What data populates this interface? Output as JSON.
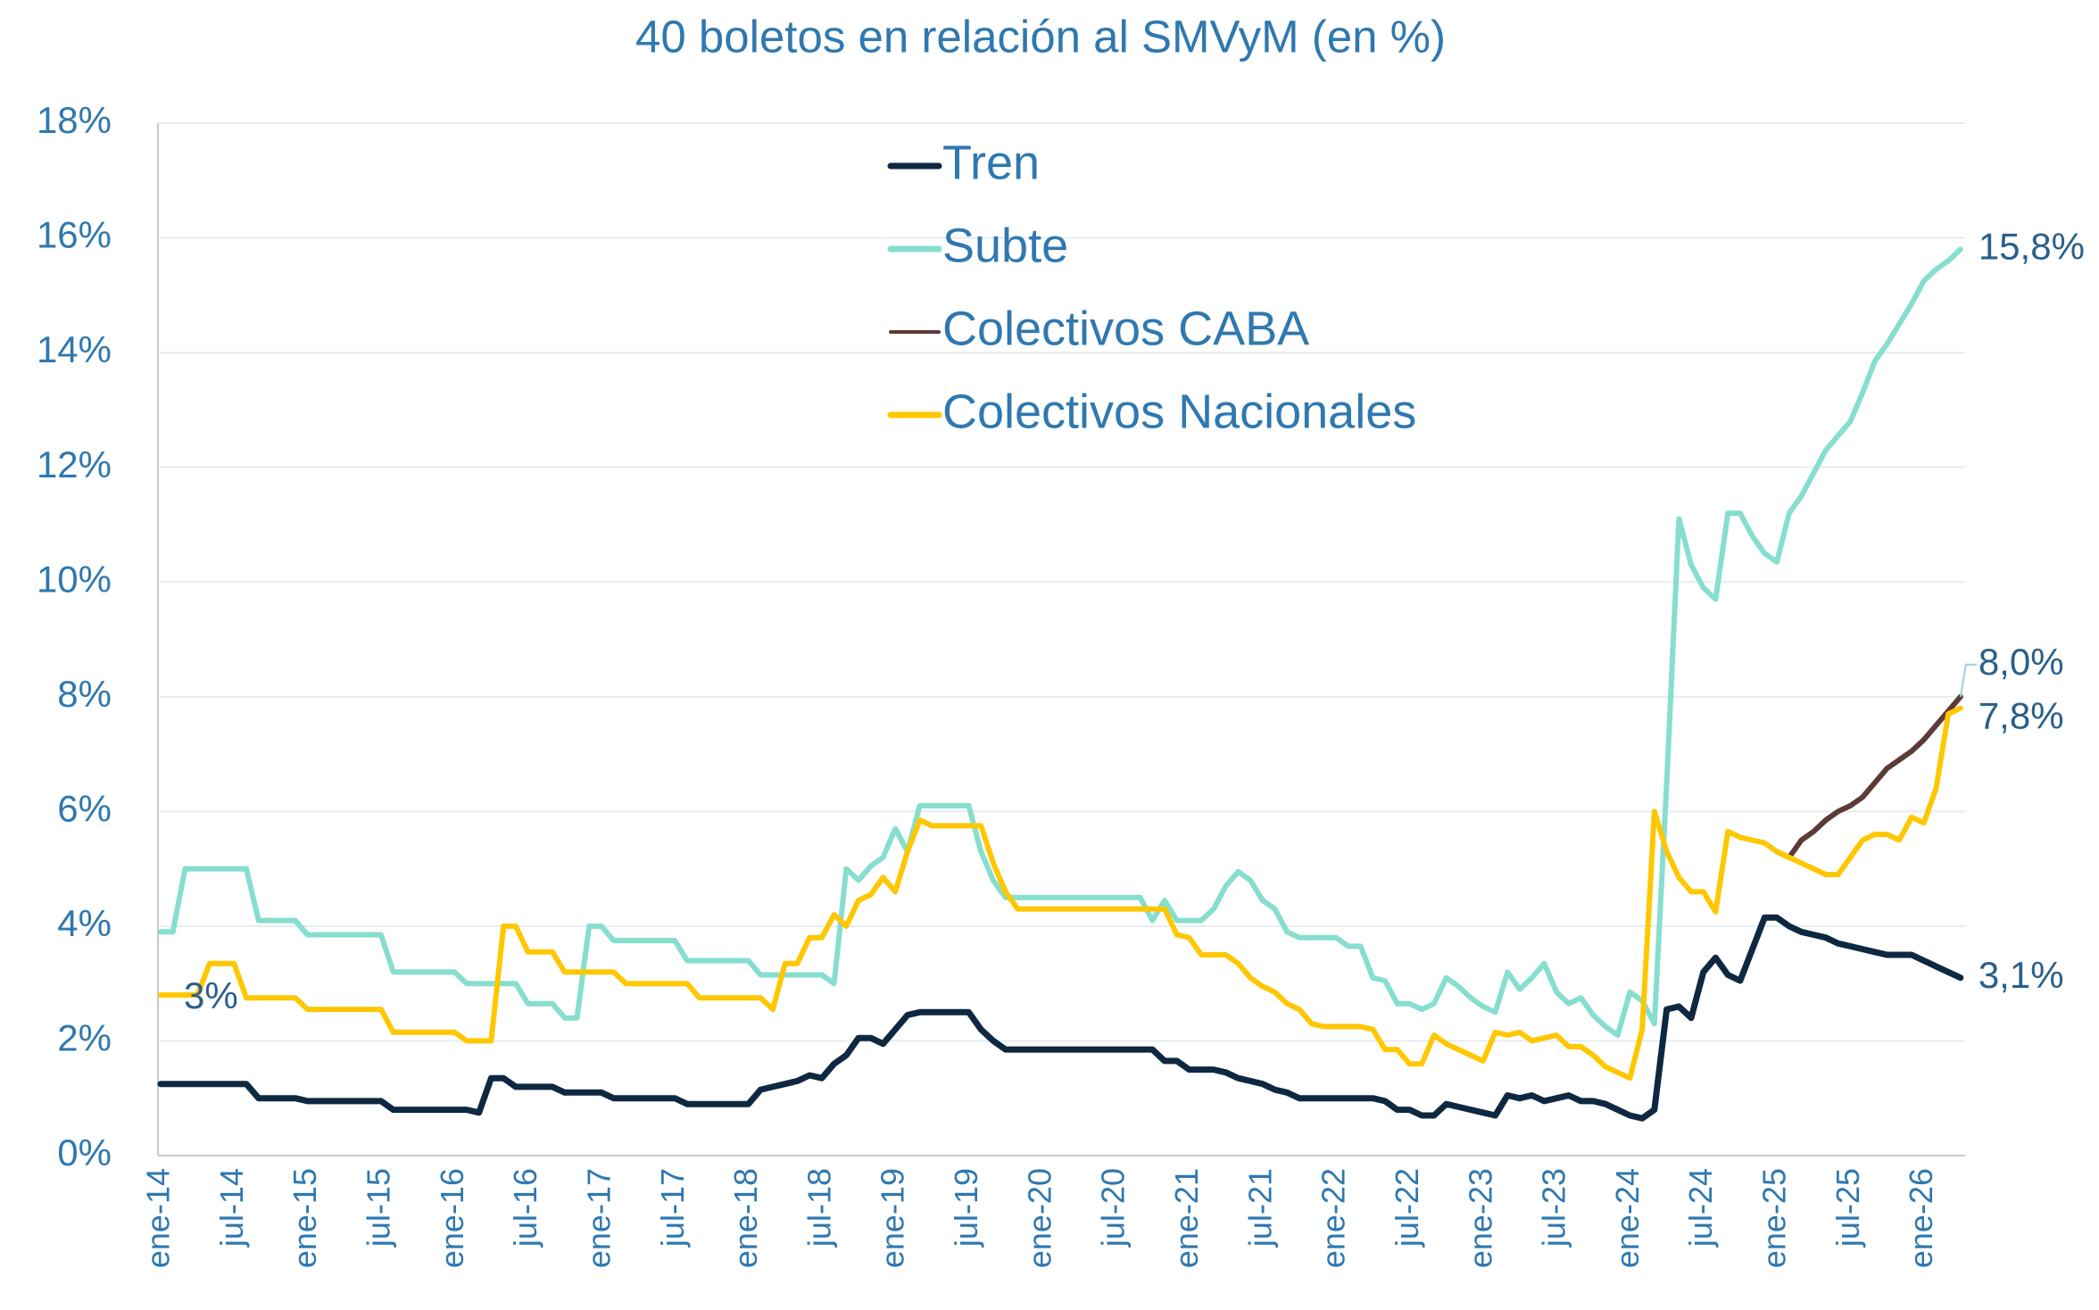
{
  "chart_data": {
    "type": "line",
    "title": "40 boletos en relación al SMVyM (en %)",
    "categories": [
      "ene-14",
      null,
      null,
      null,
      null,
      null,
      "jul-14",
      null,
      null,
      null,
      null,
      null,
      "ene-15",
      null,
      null,
      null,
      null,
      null,
      "jul-15",
      null,
      null,
      null,
      null,
      null,
      "ene-16",
      null,
      null,
      null,
      null,
      null,
      "jul-16",
      null,
      null,
      null,
      null,
      null,
      "ene-17",
      null,
      null,
      null,
      null,
      null,
      "jul-17",
      null,
      null,
      null,
      null,
      null,
      "ene-18",
      null,
      null,
      null,
      null,
      null,
      "jul-18",
      null,
      null,
      null,
      null,
      null,
      "ene-19",
      null,
      null,
      null,
      null,
      null,
      "jul-19",
      null,
      null,
      null,
      null,
      null,
      "ene-20",
      null,
      null,
      null,
      null,
      null,
      "jul-20",
      null,
      null,
      null,
      null,
      null,
      "ene-21",
      null,
      null,
      null,
      null,
      null,
      "jul-21",
      null,
      null,
      null,
      null,
      null,
      "ene-22",
      null,
      null,
      null,
      null,
      null,
      "jul-22",
      null,
      null,
      null,
      null,
      null,
      "ene-23",
      null,
      null,
      null,
      null,
      null,
      "jul-23",
      null,
      null,
      null,
      null,
      null,
      "ene-24",
      null,
      null,
      null,
      null,
      null,
      "jul-24",
      null,
      null,
      null,
      null,
      null,
      "ene-25",
      null,
      null,
      null,
      null,
      null,
      "jul-25",
      null,
      null,
      null,
      null,
      null,
      "ene-26",
      null,
      null,
      null
    ],
    "series": [
      {
        "name": "Tren",
        "color": "#0e2841",
        "end_label": "3,1%",
        "values": [
          1.25,
          1.25,
          1.25,
          1.25,
          1.25,
          1.25,
          1.25,
          1.25,
          1.0,
          1.0,
          1.0,
          1.0,
          0.95,
          0.95,
          0.95,
          0.95,
          0.95,
          0.95,
          0.95,
          0.8,
          0.8,
          0.8,
          0.8,
          0.8,
          0.8,
          0.8,
          0.75,
          1.35,
          1.35,
          1.2,
          1.2,
          1.2,
          1.2,
          1.1,
          1.1,
          1.1,
          1.1,
          1.0,
          1.0,
          1.0,
          1.0,
          1.0,
          1.0,
          0.9,
          0.9,
          0.9,
          0.9,
          0.9,
          0.9,
          1.15,
          1.2,
          1.25,
          1.3,
          1.4,
          1.35,
          1.6,
          1.75,
          2.05,
          2.05,
          1.95,
          2.2,
          2.45,
          2.5,
          2.5,
          2.5,
          2.5,
          2.5,
          2.2,
          2.0,
          1.85,
          1.85,
          1.85,
          1.85,
          1.85,
          1.85,
          1.85,
          1.85,
          1.85,
          1.85,
          1.85,
          1.85,
          1.85,
          1.65,
          1.65,
          1.5,
          1.5,
          1.5,
          1.45,
          1.35,
          1.3,
          1.25,
          1.15,
          1.1,
          1.0,
          1.0,
          1.0,
          1.0,
          1.0,
          1.0,
          1.0,
          0.95,
          0.8,
          0.8,
          0.7,
          0.7,
          0.9,
          0.85,
          0.8,
          0.75,
          0.7,
          1.05,
          1.0,
          1.05,
          0.95,
          1.0,
          1.05,
          0.95,
          0.95,
          0.9,
          0.8,
          0.7,
          0.65,
          0.8,
          2.55,
          2.6,
          2.4,
          3.2,
          3.45,
          3.15,
          3.05,
          3.6,
          4.15,
          4.15,
          4.0,
          3.9,
          3.85,
          3.8,
          3.7,
          3.65,
          3.6,
          3.55,
          3.5,
          3.5,
          3.5,
          3.4,
          3.3,
          3.2,
          3.1
        ]
      },
      {
        "name": "Subte",
        "color": "#86dece",
        "end_label": "15,8%",
        "values": [
          3.9,
          3.9,
          5.0,
          5.0,
          5.0,
          5.0,
          5.0,
          5.0,
          4.1,
          4.1,
          4.1,
          4.1,
          3.85,
          3.85,
          3.85,
          3.85,
          3.85,
          3.85,
          3.85,
          3.2,
          3.2,
          3.2,
          3.2,
          3.2,
          3.2,
          3.0,
          3.0,
          3.0,
          3.0,
          3.0,
          2.65,
          2.65,
          2.65,
          2.4,
          2.4,
          4.0,
          4.0,
          3.75,
          3.75,
          3.75,
          3.75,
          3.75,
          3.75,
          3.4,
          3.4,
          3.4,
          3.4,
          3.4,
          3.4,
          3.15,
          3.15,
          3.15,
          3.15,
          3.15,
          3.15,
          3.0,
          5.0,
          4.8,
          5.05,
          5.2,
          5.7,
          5.3,
          6.1,
          6.1,
          6.1,
          6.1,
          6.1,
          5.3,
          4.8,
          4.5,
          4.5,
          4.5,
          4.5,
          4.5,
          4.5,
          4.5,
          4.5,
          4.5,
          4.5,
          4.5,
          4.5,
          4.1,
          4.45,
          4.1,
          4.1,
          4.1,
          4.3,
          4.7,
          4.95,
          4.8,
          4.45,
          4.3,
          3.9,
          3.8,
          3.8,
          3.8,
          3.8,
          3.65,
          3.65,
          3.1,
          3.05,
          2.65,
          2.65,
          2.55,
          2.65,
          3.1,
          2.95,
          2.75,
          2.6,
          2.5,
          3.2,
          2.9,
          3.1,
          3.35,
          2.85,
          2.65,
          2.75,
          2.45,
          2.25,
          2.1,
          2.85,
          2.7,
          2.3,
          6.5,
          11.1,
          10.3,
          9.9,
          9.7,
          11.2,
          11.2,
          10.8,
          10.5,
          10.35,
          11.2,
          11.5,
          11.9,
          12.3,
          12.55,
          12.8,
          13.3,
          13.85,
          14.15,
          14.5,
          14.85,
          15.25,
          15.45,
          15.6,
          15.8
        ]
      },
      {
        "name": "Colectivos CABA",
        "color": "#5c3b36",
        "end_label": "8,0%",
        "values": [
          null,
          null,
          null,
          null,
          null,
          null,
          null,
          null,
          null,
          null,
          null,
          null,
          null,
          null,
          null,
          null,
          null,
          null,
          null,
          null,
          null,
          null,
          null,
          null,
          null,
          null,
          null,
          null,
          null,
          null,
          null,
          null,
          null,
          null,
          null,
          null,
          null,
          null,
          null,
          null,
          null,
          null,
          null,
          null,
          null,
          null,
          null,
          null,
          null,
          null,
          null,
          null,
          null,
          null,
          null,
          null,
          null,
          null,
          null,
          null,
          null,
          null,
          null,
          null,
          null,
          null,
          null,
          null,
          null,
          null,
          null,
          null,
          null,
          null,
          null,
          null,
          null,
          null,
          null,
          null,
          null,
          null,
          null,
          null,
          null,
          null,
          null,
          null,
          null,
          null,
          null,
          null,
          null,
          null,
          null,
          null,
          null,
          null,
          null,
          null,
          null,
          null,
          null,
          null,
          null,
          null,
          null,
          null,
          null,
          null,
          null,
          null,
          null,
          null,
          null,
          null,
          null,
          null,
          null,
          null,
          null,
          null,
          null,
          null,
          null,
          null,
          null,
          null,
          null,
          null,
          null,
          null,
          5.3,
          5.2,
          5.5,
          5.65,
          5.85,
          6.0,
          6.1,
          6.25,
          6.5,
          6.75,
          6.9,
          7.05,
          7.25,
          7.5,
          7.75,
          8.0
        ]
      },
      {
        "name": "Colectivos Nacionales",
        "color": "#ffc700",
        "start_label": "3%",
        "end_label": "7,8%",
        "values": [
          2.8,
          2.8,
          2.8,
          2.8,
          3.35,
          3.35,
          3.35,
          2.75,
          2.75,
          2.75,
          2.75,
          2.75,
          2.55,
          2.55,
          2.55,
          2.55,
          2.55,
          2.55,
          2.55,
          2.15,
          2.15,
          2.15,
          2.15,
          2.15,
          2.15,
          2.0,
          2.0,
          2.0,
          4.0,
          4.0,
          3.55,
          3.55,
          3.55,
          3.2,
          3.2,
          3.2,
          3.2,
          3.2,
          3.0,
          3.0,
          3.0,
          3.0,
          3.0,
          3.0,
          2.75,
          2.75,
          2.75,
          2.75,
          2.75,
          2.75,
          2.55,
          3.35,
          3.35,
          3.8,
          3.8,
          4.2,
          4.0,
          4.45,
          4.55,
          4.85,
          4.6,
          5.3,
          5.85,
          5.75,
          5.75,
          5.75,
          5.75,
          5.75,
          5.1,
          4.6,
          4.3,
          4.3,
          4.3,
          4.3,
          4.3,
          4.3,
          4.3,
          4.3,
          4.3,
          4.3,
          4.3,
          4.3,
          4.3,
          3.85,
          3.8,
          3.5,
          3.5,
          3.5,
          3.35,
          3.1,
          2.95,
          2.85,
          2.65,
          2.55,
          2.3,
          2.25,
          2.25,
          2.25,
          2.25,
          2.2,
          1.85,
          1.85,
          1.6,
          1.6,
          2.1,
          1.95,
          1.85,
          1.75,
          1.65,
          2.15,
          2.1,
          2.15,
          2.0,
          2.05,
          2.1,
          1.9,
          1.9,
          1.75,
          1.55,
          1.45,
          1.35,
          2.2,
          6.0,
          5.3,
          4.85,
          4.6,
          4.6,
          4.25,
          5.65,
          5.55,
          5.5,
          5.45,
          5.3,
          5.2,
          5.1,
          5.0,
          4.9,
          4.9,
          5.2,
          5.5,
          5.6,
          5.6,
          5.5,
          5.9,
          5.8,
          6.4,
          7.7,
          7.8
        ]
      }
    ],
    "ylim": [
      0,
      18
    ],
    "yticks": [
      {
        "value": 0,
        "label": "0%"
      },
      {
        "value": 2,
        "label": "2%"
      },
      {
        "value": 4,
        "label": "4%"
      },
      {
        "value": 6,
        "label": "6%"
      },
      {
        "value": 8,
        "label": "8%"
      },
      {
        "value": 10,
        "label": "10%"
      },
      {
        "value": 12,
        "label": "12%"
      },
      {
        "value": 14,
        "label": "14%"
      },
      {
        "value": 16,
        "label": "16%"
      },
      {
        "value": 18,
        "label": "18%"
      }
    ],
    "grid": true,
    "legend": "top"
  }
}
